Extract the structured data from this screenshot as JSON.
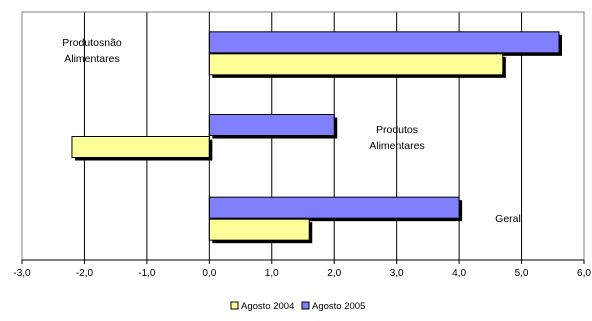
{
  "chart_data": {
    "type": "bar",
    "orientation": "horizontal",
    "categories": [
      {
        "name": "Produtos não Alimentares",
        "label_lines": [
          "Produtosnão",
          "Alimentares"
        ]
      },
      {
        "name": "Produtos Alimentares",
        "label_lines": [
          "Produtos",
          "Alimentares"
        ]
      },
      {
        "name": "Geral",
        "label_lines": [
          "Geral"
        ]
      }
    ],
    "series": [
      {
        "name": "Agosto 2005",
        "legend_label": "Agosto 2005",
        "color": "#8080FF",
        "values": [
          5.6,
          2.0,
          4.0
        ]
      },
      {
        "name": "Agosto 2004",
        "legend_label": "Agosto 2004",
        "color": "#FFFF99",
        "values": [
          4.7,
          -2.2,
          1.6
        ]
      }
    ],
    "xlim": [
      -3.0,
      6.0
    ],
    "x_ticks": [
      -3.0,
      -2.0,
      -1.0,
      0.0,
      1.0,
      2.0,
      3.0,
      4.0,
      5.0,
      6.0
    ],
    "x_tick_labels": [
      "-3,0",
      "-2,0",
      "-1,0",
      "0,0",
      "1,0",
      "2,0",
      "3,0",
      "4,0",
      "5,0",
      "6,0"
    ],
    "grid": "vertical",
    "legend_position": "bottom",
    "title": "",
    "xlabel": "",
    "ylabel": ""
  }
}
